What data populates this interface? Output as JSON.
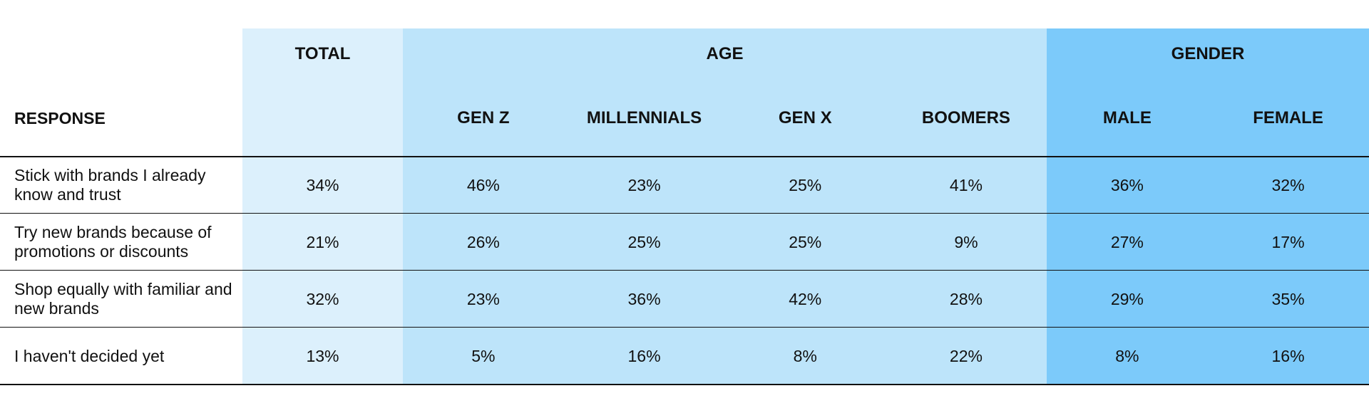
{
  "table": {
    "group_headers": {
      "total": "TOTAL",
      "age": "AGE",
      "gender": "GENDER"
    },
    "response_header": "RESPONSE",
    "subheaders": [
      "GEN Z",
      "MILLENNIALS",
      "GEN X",
      "BOOMERS",
      "MALE",
      "FEMALE"
    ],
    "rows": [
      {
        "label": "Stick with brands I already know and trust",
        "values": [
          "34%",
          "46%",
          "23%",
          "25%",
          "41%",
          "36%",
          "32%"
        ]
      },
      {
        "label": "Try new brands because of promotions or discounts",
        "values": [
          "21%",
          "26%",
          "25%",
          "25%",
          "9%",
          "27%",
          "17%"
        ]
      },
      {
        "label": "Shop equally with familiar and new brands",
        "values": [
          "32%",
          "23%",
          "36%",
          "42%",
          "28%",
          "29%",
          "35%"
        ]
      },
      {
        "label": "I haven't decided yet",
        "values": [
          "13%",
          "5%",
          "16%",
          "8%",
          "22%",
          "8%",
          "16%"
        ]
      }
    ]
  }
}
